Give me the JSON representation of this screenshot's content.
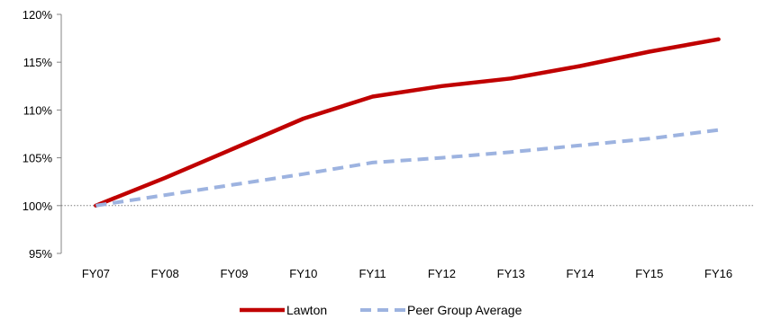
{
  "chart_data": {
    "type": "line",
    "title": "",
    "xlabel": "",
    "ylabel": "",
    "categories": [
      "FY07",
      "FY08",
      "FY09",
      "FY10",
      "FY11",
      "FY12",
      "FY13",
      "FY14",
      "FY15",
      "FY16"
    ],
    "series": [
      {
        "name": "Lawton",
        "values": [
          100.0,
          102.9,
          106.0,
          109.1,
          111.4,
          112.5,
          113.3,
          114.6,
          116.1,
          117.4
        ],
        "color": "#C00000",
        "style": "solid"
      },
      {
        "name": "Peer Group Average",
        "values": [
          100.0,
          101.1,
          102.2,
          103.3,
          104.5,
          105.0,
          105.6,
          106.3,
          107.0,
          107.9
        ],
        "color": "#9DB3E0",
        "style": "dashed"
      }
    ],
    "ylim": [
      95,
      120
    ],
    "yticks": [
      95,
      100,
      105,
      110,
      115,
      120
    ],
    "ytick_format": "percent",
    "reference_line": 100,
    "grid": false,
    "legend": "bottom-center"
  }
}
